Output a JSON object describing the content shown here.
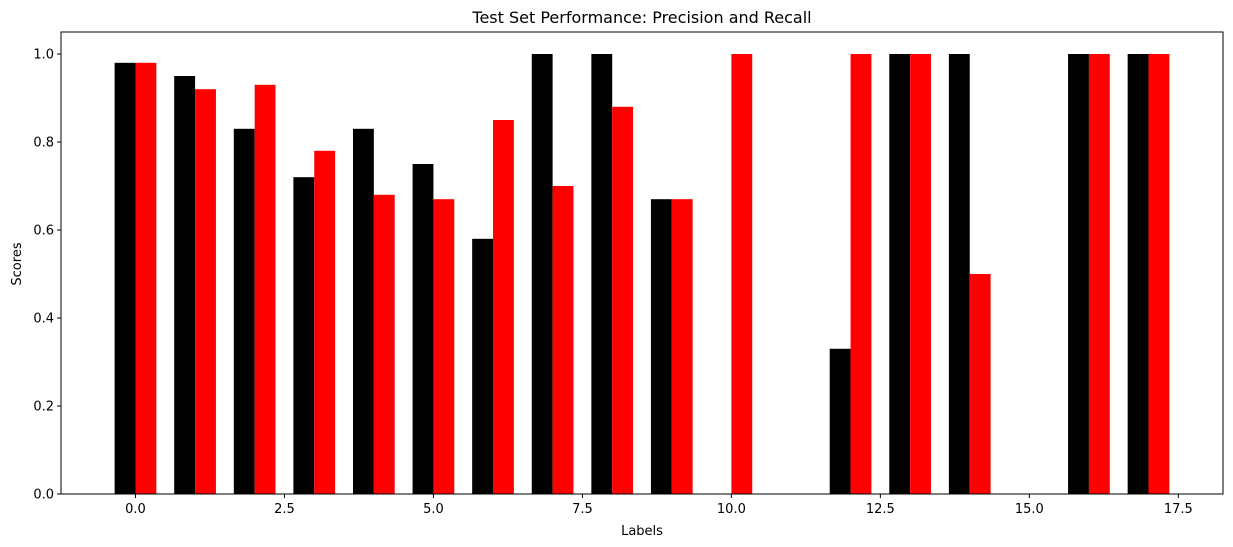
{
  "chart_data": {
    "type": "bar",
    "title": "Test Set Performance: Precision and Recall",
    "xlabel": "Labels",
    "ylabel": "Scores",
    "x": [
      0,
      1,
      2,
      3,
      4,
      5,
      6,
      7,
      8,
      9,
      10,
      11,
      12,
      13,
      14,
      15,
      16,
      17
    ],
    "xlim": [
      -1.25,
      18.25
    ],
    "ylim": [
      0.0,
      1.05
    ],
    "xticks": [
      0.0,
      2.5,
      5.0,
      7.5,
      10.0,
      12.5,
      15.0,
      17.5
    ],
    "xtick_labels": [
      "0.0",
      "2.5",
      "5.0",
      "7.5",
      "10.0",
      "12.5",
      "15.0",
      "17.5"
    ],
    "yticks": [
      0.0,
      0.2,
      0.4,
      0.6,
      0.8,
      1.0
    ],
    "ytick_labels": [
      "0.0",
      "0.2",
      "0.4",
      "0.6",
      "0.8",
      "1.0"
    ],
    "bar_width": 0.35,
    "grid": false,
    "series": [
      {
        "color": "#000000",
        "offset": -0.175,
        "values": [
          0.98,
          0.95,
          0.83,
          0.72,
          0.83,
          0.75,
          0.58,
          1.0,
          1.0,
          0.67,
          0.0,
          0.0,
          0.33,
          1.0,
          1.0,
          0.0,
          1.0,
          1.0
        ]
      },
      {
        "color": "#ff0000",
        "offset": 0.175,
        "values": [
          0.98,
          0.92,
          0.93,
          0.78,
          0.68,
          0.67,
          0.85,
          0.7,
          0.88,
          0.67,
          1.0,
          0.0,
          1.0,
          1.0,
          0.5,
          0.0,
          1.0,
          1.0
        ]
      }
    ]
  }
}
